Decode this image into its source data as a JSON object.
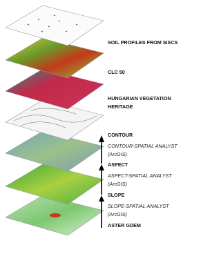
{
  "layers": [
    {
      "lines": [
        "SOIL PROFILES FROM SISCS"
      ]
    },
    {
      "lines": [
        "CLC 50"
      ]
    },
    {
      "lines": [
        "HUNGARIAN VEGETATION",
        "HERITAGE"
      ]
    },
    {
      "lines": [
        "CONTOUR"
      ]
    },
    {
      "lines": [
        "ASPECT"
      ]
    },
    {
      "lines": [
        "SLOPE"
      ]
    },
    {
      "lines": [
        "ASTER GDEM"
      ]
    }
  ],
  "tools": [
    {
      "lines": [
        "CONTOUR-SPATIAL ANALYST",
        "(ArcGIS)"
      ]
    },
    {
      "lines": [
        "ASPECT-SPATIAL ANALYST",
        "(ArcGIS)"
      ]
    },
    {
      "lines": [
        "SLOPE-SPATIAL ANALYST",
        "(ArcGIS)"
      ]
    }
  ]
}
